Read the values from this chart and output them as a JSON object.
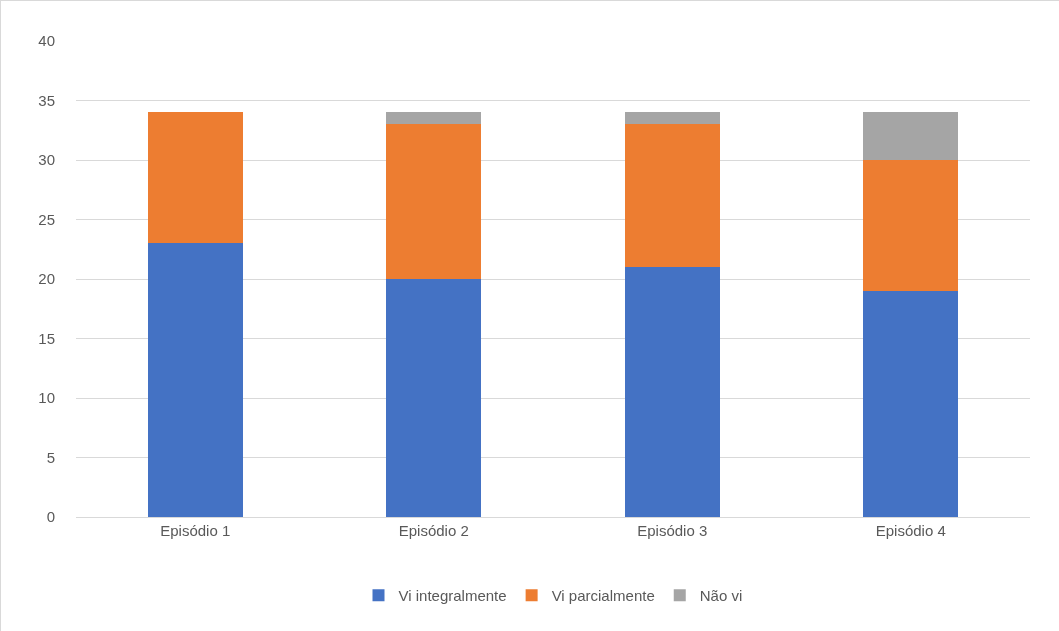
{
  "chart_data": {
    "type": "bar",
    "stacked": true,
    "categories": [
      "Episódio 1",
      "Episódio 2",
      "Episódio 3",
      "Episódio 4"
    ],
    "series": [
      {
        "name": "Vi integralmente",
        "color": "#4472c4",
        "values": [
          23,
          20,
          21,
          19
        ]
      },
      {
        "name": "Vi parcialmente",
        "color": "#ed7d31",
        "values": [
          11,
          13,
          12,
          11
        ]
      },
      {
        "name": "Não vi",
        "color": "#a5a5a5",
        "values": [
          0,
          1,
          1,
          4
        ]
      }
    ],
    "ylim": [
      0,
      40
    ],
    "yticks": [
      0,
      5,
      10,
      15,
      20,
      25,
      30,
      35,
      40
    ],
    "grid": "y",
    "legend": "bottom"
  }
}
